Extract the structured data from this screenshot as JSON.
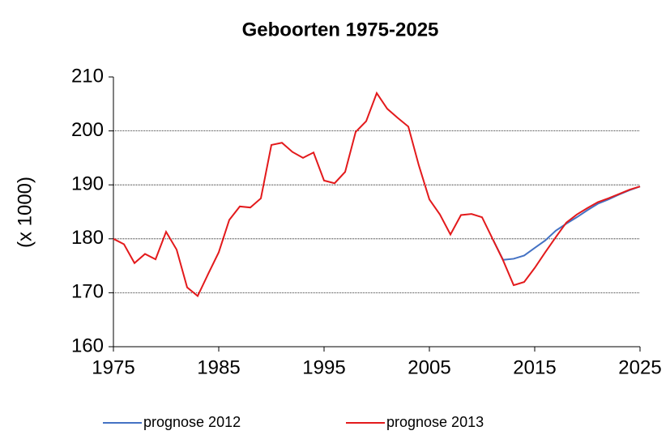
{
  "chart_data": {
    "type": "line",
    "title": "Geboorten 1975-2025",
    "ylabel": "(x 1000)",
    "x": [
      1975,
      1976,
      1977,
      1978,
      1979,
      1980,
      1981,
      1982,
      1983,
      1984,
      1985,
      1986,
      1987,
      1988,
      1989,
      1990,
      1991,
      1992,
      1993,
      1994,
      1995,
      1996,
      1997,
      1998,
      1999,
      2000,
      2001,
      2002,
      2003,
      2004,
      2005,
      2006,
      2007,
      2008,
      2009,
      2010,
      2011,
      2012,
      2013,
      2014,
      2015,
      2016,
      2017,
      2018,
      2019,
      2020,
      2021,
      2022,
      2023,
      2024,
      2025
    ],
    "series": [
      {
        "name": "prognose 2012",
        "color": "#4472c4",
        "values": [
          null,
          null,
          null,
          null,
          null,
          null,
          null,
          null,
          null,
          null,
          null,
          null,
          null,
          null,
          null,
          null,
          null,
          null,
          null,
          null,
          null,
          null,
          null,
          null,
          null,
          null,
          null,
          null,
          null,
          null,
          null,
          null,
          null,
          null,
          null,
          null,
          180,
          176.1,
          176.3,
          176.9,
          178.3,
          179.7,
          181.5,
          182.8,
          184.0,
          185.3,
          186.5,
          187.3,
          188.2,
          189.0,
          189.7
        ]
      },
      {
        "name": "prognose 2013",
        "color": "#e31a1c",
        "values": [
          180,
          179,
          175.5,
          177.2,
          176.2,
          181.3,
          178,
          171,
          169.4,
          173.5,
          177.5,
          183.5,
          186,
          185.8,
          187.5,
          197.4,
          197.8,
          196.1,
          195,
          196,
          190.8,
          190.3,
          192.4,
          199.8,
          201.8,
          207,
          204.1,
          202.4,
          200.8,
          193.6,
          187.3,
          184.5,
          180.8,
          184.4,
          184.6,
          184.0,
          180,
          176,
          171.4,
          172.0,
          174.6,
          177.5,
          180.3,
          183.0,
          184.5,
          185.7,
          186.8,
          187.5,
          188.3,
          189.1,
          189.7
        ]
      }
    ],
    "xlim": [
      1975,
      2025
    ],
    "xticks": [
      1975,
      1985,
      1995,
      2005,
      2015,
      2025
    ],
    "ylim": [
      160,
      210
    ],
    "yticks": [
      160,
      170,
      180,
      190,
      200,
      210
    ],
    "grid": true,
    "legend": "bottom"
  }
}
